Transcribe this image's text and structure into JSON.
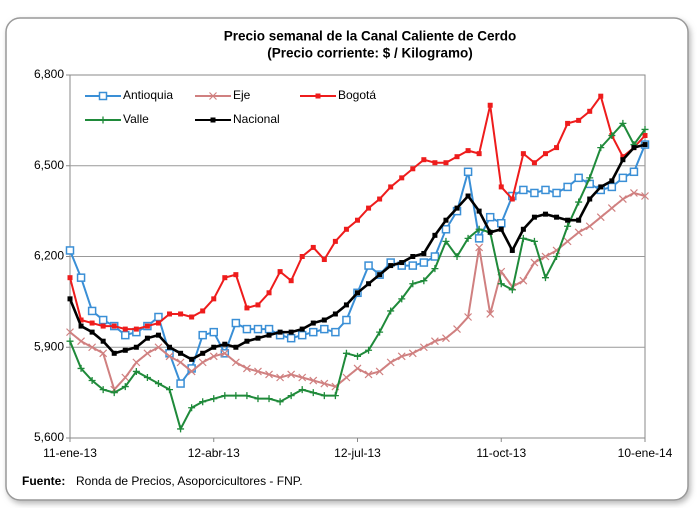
{
  "chart_data": {
    "type": "line",
    "title": "Precio semanal de la Canal Caliente de Cerdo",
    "subtitle": "(Precio corriente: $ / Kilogramo)",
    "source_label": "Fuente:",
    "source": "Ronda de Precios, Asoporcicultores  - FNP.",
    "categories": [
      "11-ene-13",
      null,
      null,
      null,
      null,
      null,
      null,
      null,
      null,
      null,
      null,
      null,
      null,
      "12-abr-13",
      null,
      null,
      null,
      null,
      null,
      null,
      null,
      null,
      null,
      null,
      null,
      null,
      "12-jul-13",
      null,
      null,
      null,
      null,
      null,
      null,
      null,
      null,
      null,
      null,
      null,
      null,
      "11-oct-13",
      null,
      null,
      null,
      null,
      null,
      null,
      null,
      null,
      null,
      null,
      null,
      null,
      "10-ene-14"
    ],
    "ylim": [
      5600,
      6800
    ],
    "yticks": [
      {
        "value": 5600,
        "label": "5,600"
      },
      {
        "value": 5900,
        "label": "5,900"
      },
      {
        "value": 6200,
        "label": "6,200"
      },
      {
        "value": 6500,
        "label": "6,500"
      },
      {
        "value": 6800,
        "label": "6,800"
      }
    ],
    "grid": true,
    "legend": "upper left",
    "series": [
      {
        "name": "Antioquia",
        "color": "#3a8fd6",
        "marker": "open-square",
        "values": [
          6220,
          6130,
          6020,
          5990,
          5970,
          5940,
          5950,
          5970,
          6000,
          5880,
          5780,
          5830,
          5940,
          5950,
          5880,
          5980,
          5960,
          5960,
          5960,
          5940,
          5930,
          5940,
          5950,
          5960,
          5950,
          5990,
          6080,
          6170,
          6140,
          6180,
          6170,
          6170,
          6180,
          6200,
          6290,
          6350,
          6480,
          6260,
          6330,
          6310,
          6400,
          6420,
          6410,
          6420,
          6410,
          6430,
          6460,
          6440,
          6420,
          6430,
          6460,
          6480,
          6570
        ]
      },
      {
        "name": "Eje",
        "color": "#d08080",
        "marker": "x",
        "values": [
          5950,
          5920,
          5900,
          5880,
          5760,
          5800,
          5850,
          5880,
          5900,
          5870,
          5850,
          5820,
          5850,
          5870,
          5880,
          5850,
          5830,
          5820,
          5810,
          5800,
          5810,
          5800,
          5790,
          5780,
          5770,
          5800,
          5830,
          5810,
          5820,
          5850,
          5870,
          5880,
          5900,
          5920,
          5930,
          5960,
          6000,
          6230,
          6010,
          6150,
          6100,
          6120,
          6180,
          6200,
          6220,
          6250,
          6280,
          6300,
          6330,
          6360,
          6390,
          6410,
          6400
        ]
      },
      {
        "name": "Bogotá",
        "color": "#ee1c1c",
        "marker": "square",
        "values": [
          6130,
          5990,
          5980,
          5970,
          5970,
          5960,
          5960,
          5970,
          5980,
          6010,
          6010,
          6000,
          6020,
          6060,
          6130,
          6140,
          6030,
          6040,
          6080,
          6150,
          6120,
          6200,
          6230,
          6190,
          6250,
          6290,
          6320,
          6360,
          6390,
          6430,
          6460,
          6490,
          6520,
          6510,
          6510,
          6530,
          6550,
          6540,
          6700,
          6430,
          6390,
          6540,
          6510,
          6540,
          6560,
          6640,
          6650,
          6680,
          6730,
          6600,
          6530,
          6560,
          6600
        ]
      },
      {
        "name": "Valle",
        "color": "#1f8a3a",
        "marker": "plus",
        "values": [
          5920,
          5830,
          5790,
          5760,
          5750,
          5770,
          5820,
          5800,
          5780,
          5760,
          5630,
          5700,
          5720,
          5730,
          5740,
          5740,
          5740,
          5730,
          5730,
          5720,
          5740,
          5760,
          5750,
          5740,
          5740,
          5880,
          5870,
          5890,
          5950,
          6020,
          6060,
          6110,
          6120,
          6160,
          6250,
          6200,
          6260,
          6290,
          6280,
          6110,
          6090,
          6260,
          6250,
          6130,
          6200,
          6300,
          6380,
          6460,
          6560,
          6600,
          6640,
          6570,
          6620
        ]
      },
      {
        "name": "Nacional",
        "color": "#000000",
        "marker": "square",
        "values": [
          6060,
          5970,
          5950,
          5920,
          5880,
          5890,
          5900,
          5930,
          5940,
          5900,
          5880,
          5860,
          5880,
          5900,
          5910,
          5900,
          5920,
          5930,
          5940,
          5950,
          5950,
          5960,
          5980,
          5990,
          6010,
          6040,
          6080,
          6110,
          6140,
          6170,
          6180,
          6200,
          6210,
          6270,
          6320,
          6360,
          6400,
          6350,
          6280,
          6290,
          6220,
          6290,
          6330,
          6340,
          6330,
          6320,
          6320,
          6390,
          6430,
          6450,
          6520,
          6560,
          6570
        ]
      }
    ]
  }
}
